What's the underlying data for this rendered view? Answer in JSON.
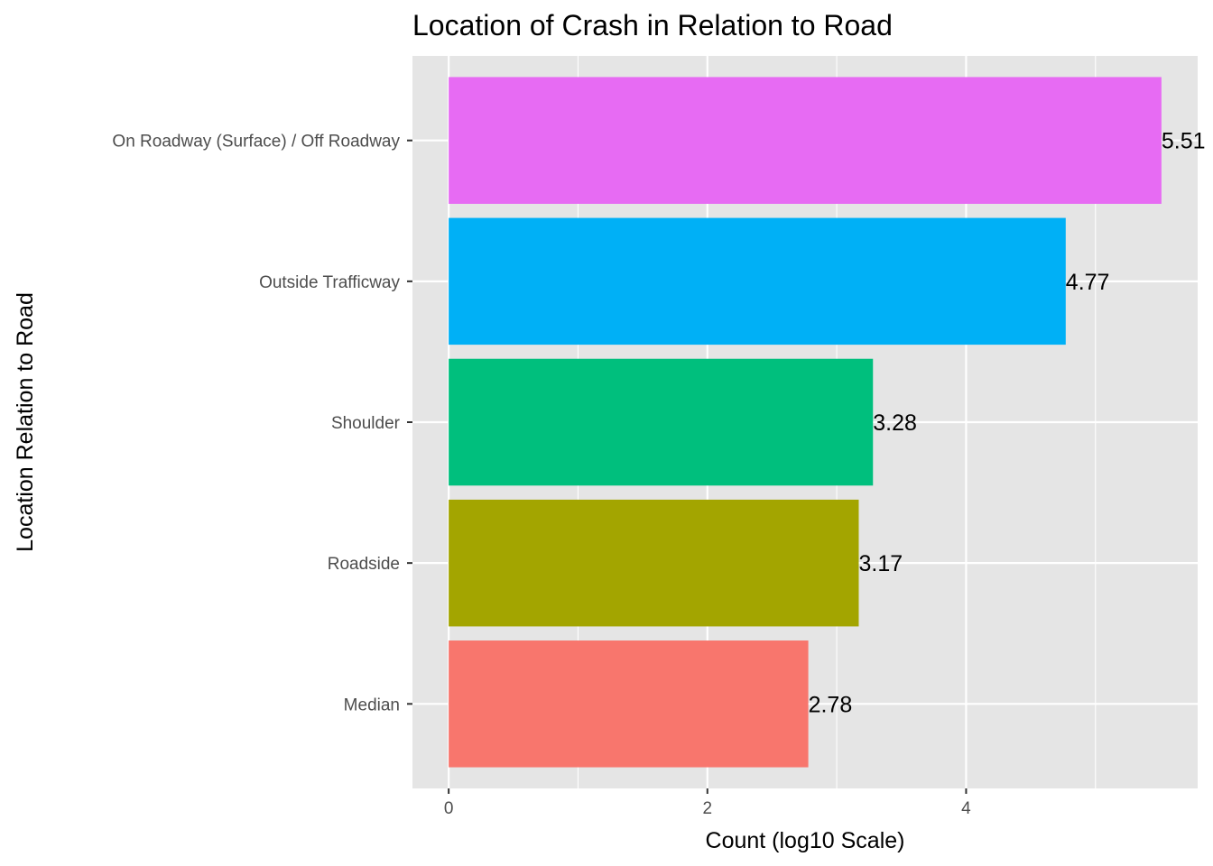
{
  "chart_data": {
    "type": "bar",
    "orientation": "horizontal",
    "title": "Location of Crash in Relation to Road",
    "xlabel": "Count (log10 Scale)",
    "ylabel": "Location Relation to Road",
    "xlim": [
      -0.28,
      5.79
    ],
    "x_ticks": [
      0,
      2,
      4
    ],
    "x_tick_labels": [
      "0",
      "2",
      "4"
    ],
    "grid": true,
    "legend": "none",
    "categories": [
      "Median",
      "Roadside",
      "Shoulder",
      "Outside Trafficway",
      "On Roadway (Surface) / Off Roadway"
    ],
    "values": [
      2.78,
      3.17,
      3.28,
      4.77,
      5.51
    ],
    "value_labels": [
      "2.78",
      "3.17",
      "3.28",
      "4.77",
      "5.51"
    ],
    "colors": [
      "#F8766D",
      "#A3A500",
      "#00BF7D",
      "#00B0F6",
      "#E76BF3"
    ],
    "panel_background": "#EBEBEB",
    "grid_color": "#FFFFFF"
  }
}
